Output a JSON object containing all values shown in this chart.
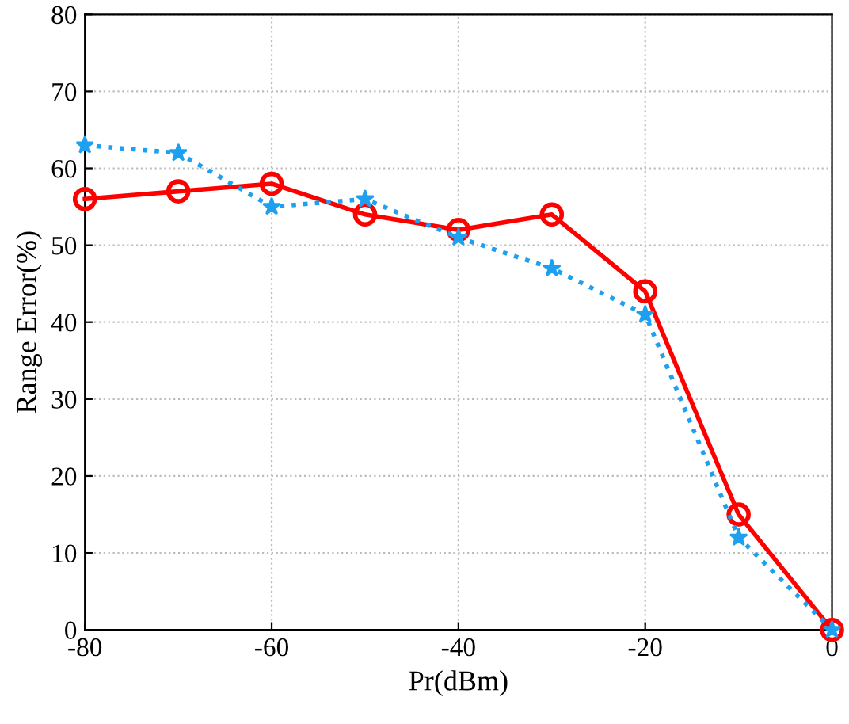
{
  "chart_data": {
    "type": "line",
    "xlabel": "Pr(dBm)",
    "ylabel": "Range Error(%)",
    "x": [
      -80,
      -70,
      -60,
      -50,
      -40,
      -30,
      -20,
      -10,
      0
    ],
    "series": [
      {
        "color": "#ff0000",
        "marker": "circle",
        "line_style": "solid",
        "values": [
          56,
          57,
          58,
          54,
          52,
          54,
          44,
          15,
          0
        ]
      },
      {
        "color": "#1ea0f0",
        "marker": "star",
        "line_style": "dotted",
        "values": [
          63,
          62,
          55,
          56,
          51,
          47,
          41,
          12,
          0
        ]
      }
    ],
    "xlim": [
      -80,
      0
    ],
    "xticks": [
      -80,
      -60,
      -40,
      -20,
      0
    ],
    "ylim": [
      0,
      80
    ],
    "yticks": [
      0,
      10,
      20,
      30,
      40,
      50,
      60,
      70,
      80
    ],
    "grid": true
  }
}
